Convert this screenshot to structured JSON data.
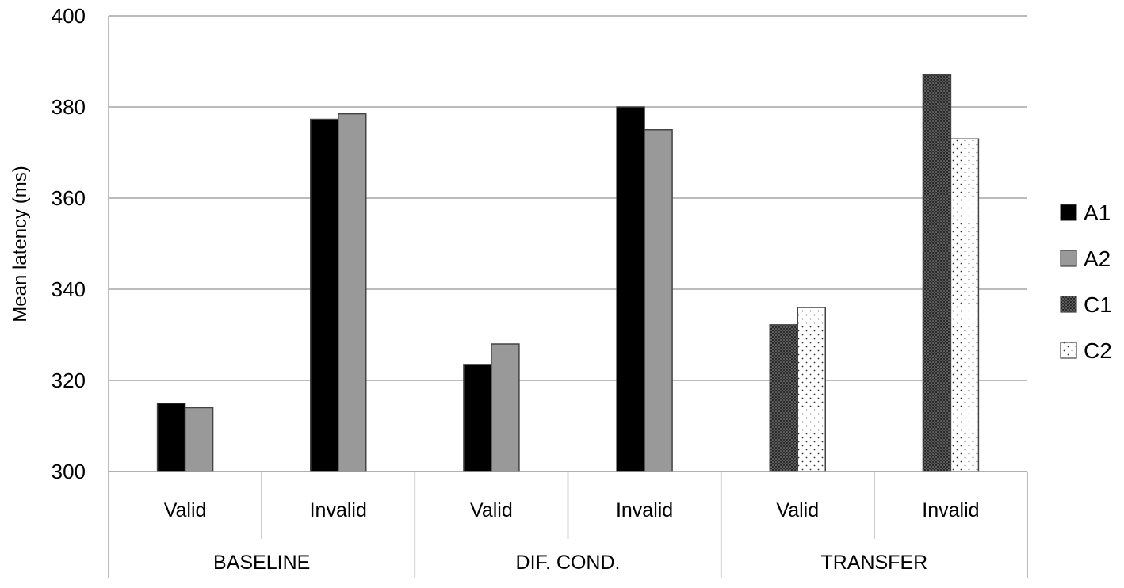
{
  "chart_data": {
    "type": "bar",
    "title": "",
    "ylabel": "Mean latency (ms)",
    "ylim": [
      300,
      400
    ],
    "yticks": [
      300,
      320,
      340,
      360,
      380,
      400
    ],
    "grid": true,
    "legend_position": "right",
    "groups": [
      {
        "label": "BASELINE",
        "categories": [
          "Valid",
          "Invalid"
        ]
      },
      {
        "label": "DIF. COND.",
        "categories": [
          "Valid",
          "Invalid"
        ]
      },
      {
        "label": "TRANSFER",
        "categories": [
          "Valid",
          "Invalid"
        ]
      }
    ],
    "categories": [
      "Valid",
      "Invalid",
      "Valid",
      "Invalid",
      "Valid",
      "Invalid"
    ],
    "series": [
      {
        "name": "A1",
        "values": [
          315,
          377.3,
          323.5,
          380,
          null,
          null
        ],
        "color": "#000000",
        "pattern": "solid"
      },
      {
        "name": "A2",
        "values": [
          314,
          378.5,
          328,
          375,
          null,
          null
        ],
        "color": "#999999",
        "pattern": "solid"
      },
      {
        "name": "C1",
        "values": [
          null,
          null,
          null,
          null,
          332.2,
          387
        ],
        "color": "#333333",
        "pattern": "dense-dots"
      },
      {
        "name": "C2",
        "values": [
          null,
          null,
          null,
          null,
          336,
          373
        ],
        "color": "#ffffff",
        "pattern": "sparse-dots"
      }
    ]
  }
}
